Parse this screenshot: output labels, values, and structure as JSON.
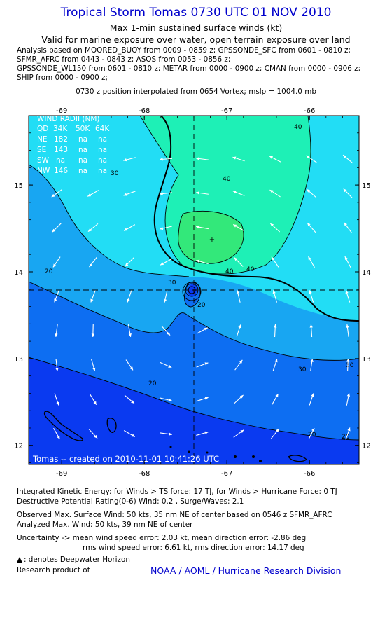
{
  "header": {
    "title": "Tropical Storm Tomas 0730 UTC 01 NOV 2010",
    "subtitle": "Max 1-min sustained surface winds (kt)",
    "validity": "Valid for marine exposure over water, open terrain exposure over land"
  },
  "analysis_lines": [
    "Analysis based on MOORED_BUOY from 0009 - 0859 z; GPSSONDE_SFC from 0601 - 0810 z;",
    "SFMR_AFRC from 0443 - 0843 z; ASOS from 0053 - 0856 z;",
    "GPSSONDE_WL150 from 0601 - 0810 z; METAR from 0000 - 0900 z; CMAN from 0000 - 0906 z;",
    "SHIP from 0000 - 0900 z;"
  ],
  "position_note": "0730 z position interpolated from 0654 Vortex; mslp = 1004.0 mb",
  "wind_radii": {
    "title": "WIND RADII (NM)",
    "header": [
      "QD",
      "34K",
      "50K",
      "64K"
    ],
    "rows": [
      [
        "NE",
        "182",
        "na",
        "na"
      ],
      [
        "SE",
        "143",
        "na",
        "na"
      ],
      [
        "SW",
        "na",
        "na",
        "na"
      ],
      [
        "NW",
        "146",
        "na",
        "na"
      ]
    ]
  },
  "credit": "Tomas -- created on 2010-11-01 10:41:26 UTC",
  "footer": {
    "ike": "Integrated Kinetic Energy:  for Winds > TS force: 17 TJ,  for Winds > Hurricane Force: 0 TJ",
    "dpr": "Destructive Potential Rating(0-6)   Wind: 0.2 , Surge/Waves: 2.1",
    "observed": "Observed Max. Surface Wind: 50 kts, 35 nm NE of center based on 0546 z SFMR_AFRC",
    "analyzed": "Analyzed Max. Wind: 50 kts, 39 nm NE of center",
    "uncertainty1": "Uncertainty -> mean wind speed error: 2.03 kt,   mean direction error:  -2.86 deg",
    "uncertainty2": "rms wind speed error: 6.61 kt,   rms direction error: 14.17 deg",
    "deepwater": ": denotes Deepwater Horizon",
    "research_label": "Research product of",
    "research_org": "NOAA / AOML / Hurricane Research Division"
  },
  "colors": {
    "title": "#0000cc",
    "level_lt20": "#0a3af0",
    "level_20_30": "#0d6ef2",
    "level_30_40_a": "#18a6f2",
    "level_30_40_b": "#22ddf5",
    "level_40_50": "#1ef0b6",
    "level_ge50": "#33e87a"
  },
  "chart_data": {
    "type": "heatmap",
    "x": [
      -69,
      -68,
      -67,
      -66
    ],
    "y": [
      12,
      13,
      14,
      15
    ],
    "xlim": [
      -69.4,
      -65.4
    ],
    "ylim": [
      11.78,
      15.8
    ],
    "contour_levels": [
      "20",
      "30",
      "40"
    ],
    "center": {
      "lon": -67.4,
      "lat": 13.78
    },
    "max_wind_point": {
      "lon": -67.0,
      "lat": 14.35
    },
    "grid": false
  }
}
